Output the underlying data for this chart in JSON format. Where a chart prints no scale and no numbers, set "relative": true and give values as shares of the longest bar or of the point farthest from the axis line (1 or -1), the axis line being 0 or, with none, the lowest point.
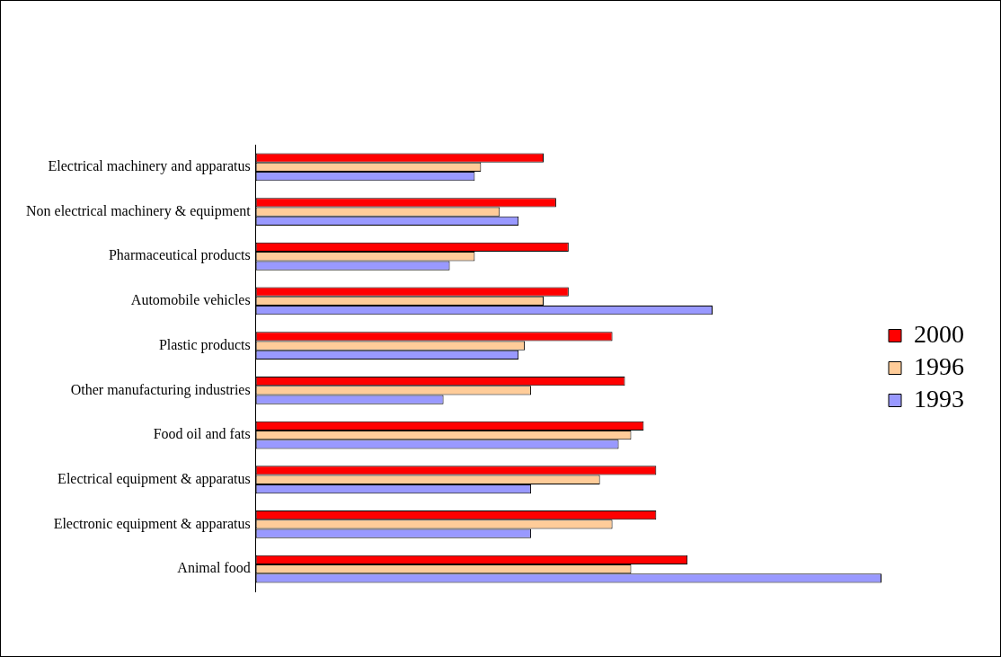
{
  "chart_data": {
    "type": "bar",
    "orientation": "horizontal",
    "relative": true,
    "legend": "right",
    "grid": false,
    "categories": [
      "Electrical machinery and apparatus",
      "Non electrical machinery & equipment",
      "Pharmaceutical products",
      "Automobile vehicles",
      "Plastic products",
      "Other manufacturing industries",
      "Food oil and fats",
      "Electrical equipment & apparatus",
      "Electronic equipment & apparatus",
      "Animal food"
    ],
    "series": [
      {
        "name": "2000",
        "color": "#ff0000",
        "values": [
          0.46,
          0.48,
          0.5,
          0.5,
          0.57,
          0.59,
          0.62,
          0.64,
          0.64,
          0.69
        ]
      },
      {
        "name": "1996",
        "color": "#ffcc99",
        "values": [
          0.36,
          0.39,
          0.35,
          0.46,
          0.43,
          0.44,
          0.6,
          0.55,
          0.57,
          0.6
        ]
      },
      {
        "name": "1993",
        "color": "#9999ff",
        "values": [
          0.35,
          0.42,
          0.31,
          0.73,
          0.42,
          0.3,
          0.58,
          0.44,
          0.44,
          1
        ]
      }
    ]
  }
}
